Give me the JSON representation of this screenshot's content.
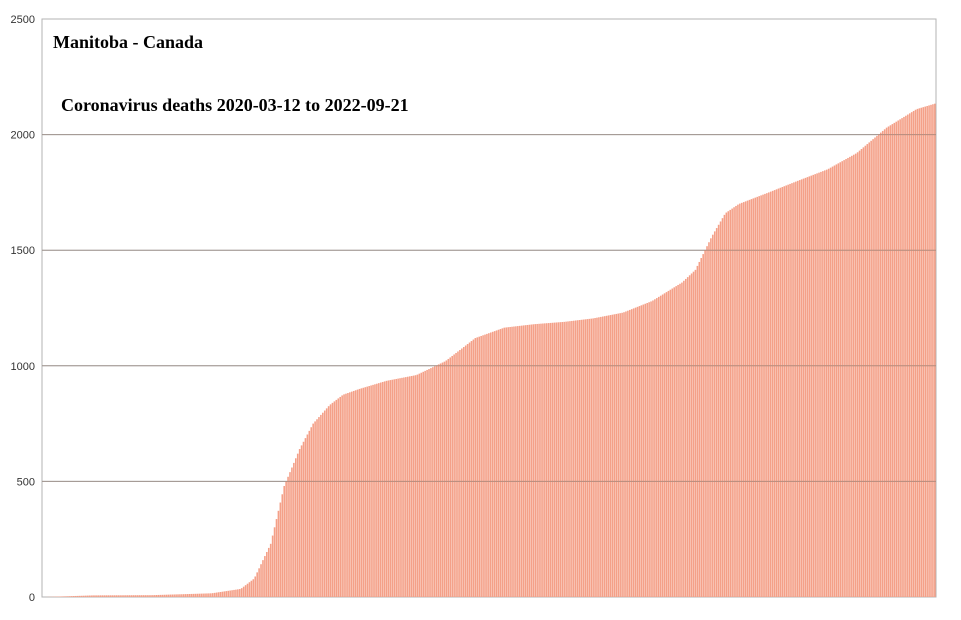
{
  "chart_data": {
    "type": "area",
    "title": "Manitoba - Canada",
    "subtitle": "Coronavirus deaths 2020-03-12 to 2022-09-21",
    "xlabel": "",
    "ylabel": "",
    "x_start": "2020-03-12",
    "x_end": "2022-09-21",
    "ylim": [
      0,
      2500
    ],
    "yticks": [
      "0",
      "500",
      "1000",
      "1500",
      "2000",
      "2500"
    ],
    "grid": true,
    "legend": "none",
    "series": [
      {
        "color": "#f4a088",
        "points": [
          [
            "2020-03-12",
            0
          ],
          [
            "2020-05-01",
            7
          ],
          [
            "2020-07-01",
            8
          ],
          [
            "2020-09-01",
            16
          ],
          [
            "2020-10-01",
            35
          ],
          [
            "2020-10-15",
            80
          ],
          [
            "2020-11-01",
            230
          ],
          [
            "2020-11-15",
            480
          ],
          [
            "2020-12-01",
            640
          ],
          [
            "2020-12-15",
            750
          ],
          [
            "2021-01-01",
            830
          ],
          [
            "2021-01-15",
            875
          ],
          [
            "2021-02-01",
            900
          ],
          [
            "2021-03-01",
            935
          ],
          [
            "2021-04-01",
            960
          ],
          [
            "2021-05-01",
            1020
          ],
          [
            "2021-06-01",
            1120
          ],
          [
            "2021-07-01",
            1165
          ],
          [
            "2021-08-01",
            1180
          ],
          [
            "2021-09-01",
            1190
          ],
          [
            "2021-10-01",
            1205
          ],
          [
            "2021-11-01",
            1230
          ],
          [
            "2021-12-01",
            1280
          ],
          [
            "2022-01-01",
            1360
          ],
          [
            "2022-01-15",
            1415
          ],
          [
            "2022-02-01",
            1560
          ],
          [
            "2022-02-15",
            1660
          ],
          [
            "2022-03-01",
            1700
          ],
          [
            "2022-04-01",
            1750
          ],
          [
            "2022-05-01",
            1800
          ],
          [
            "2022-06-01",
            1850
          ],
          [
            "2022-07-01",
            1920
          ],
          [
            "2022-08-01",
            2030
          ],
          [
            "2022-09-01",
            2110
          ],
          [
            "2022-09-21",
            2135
          ]
        ]
      }
    ]
  }
}
